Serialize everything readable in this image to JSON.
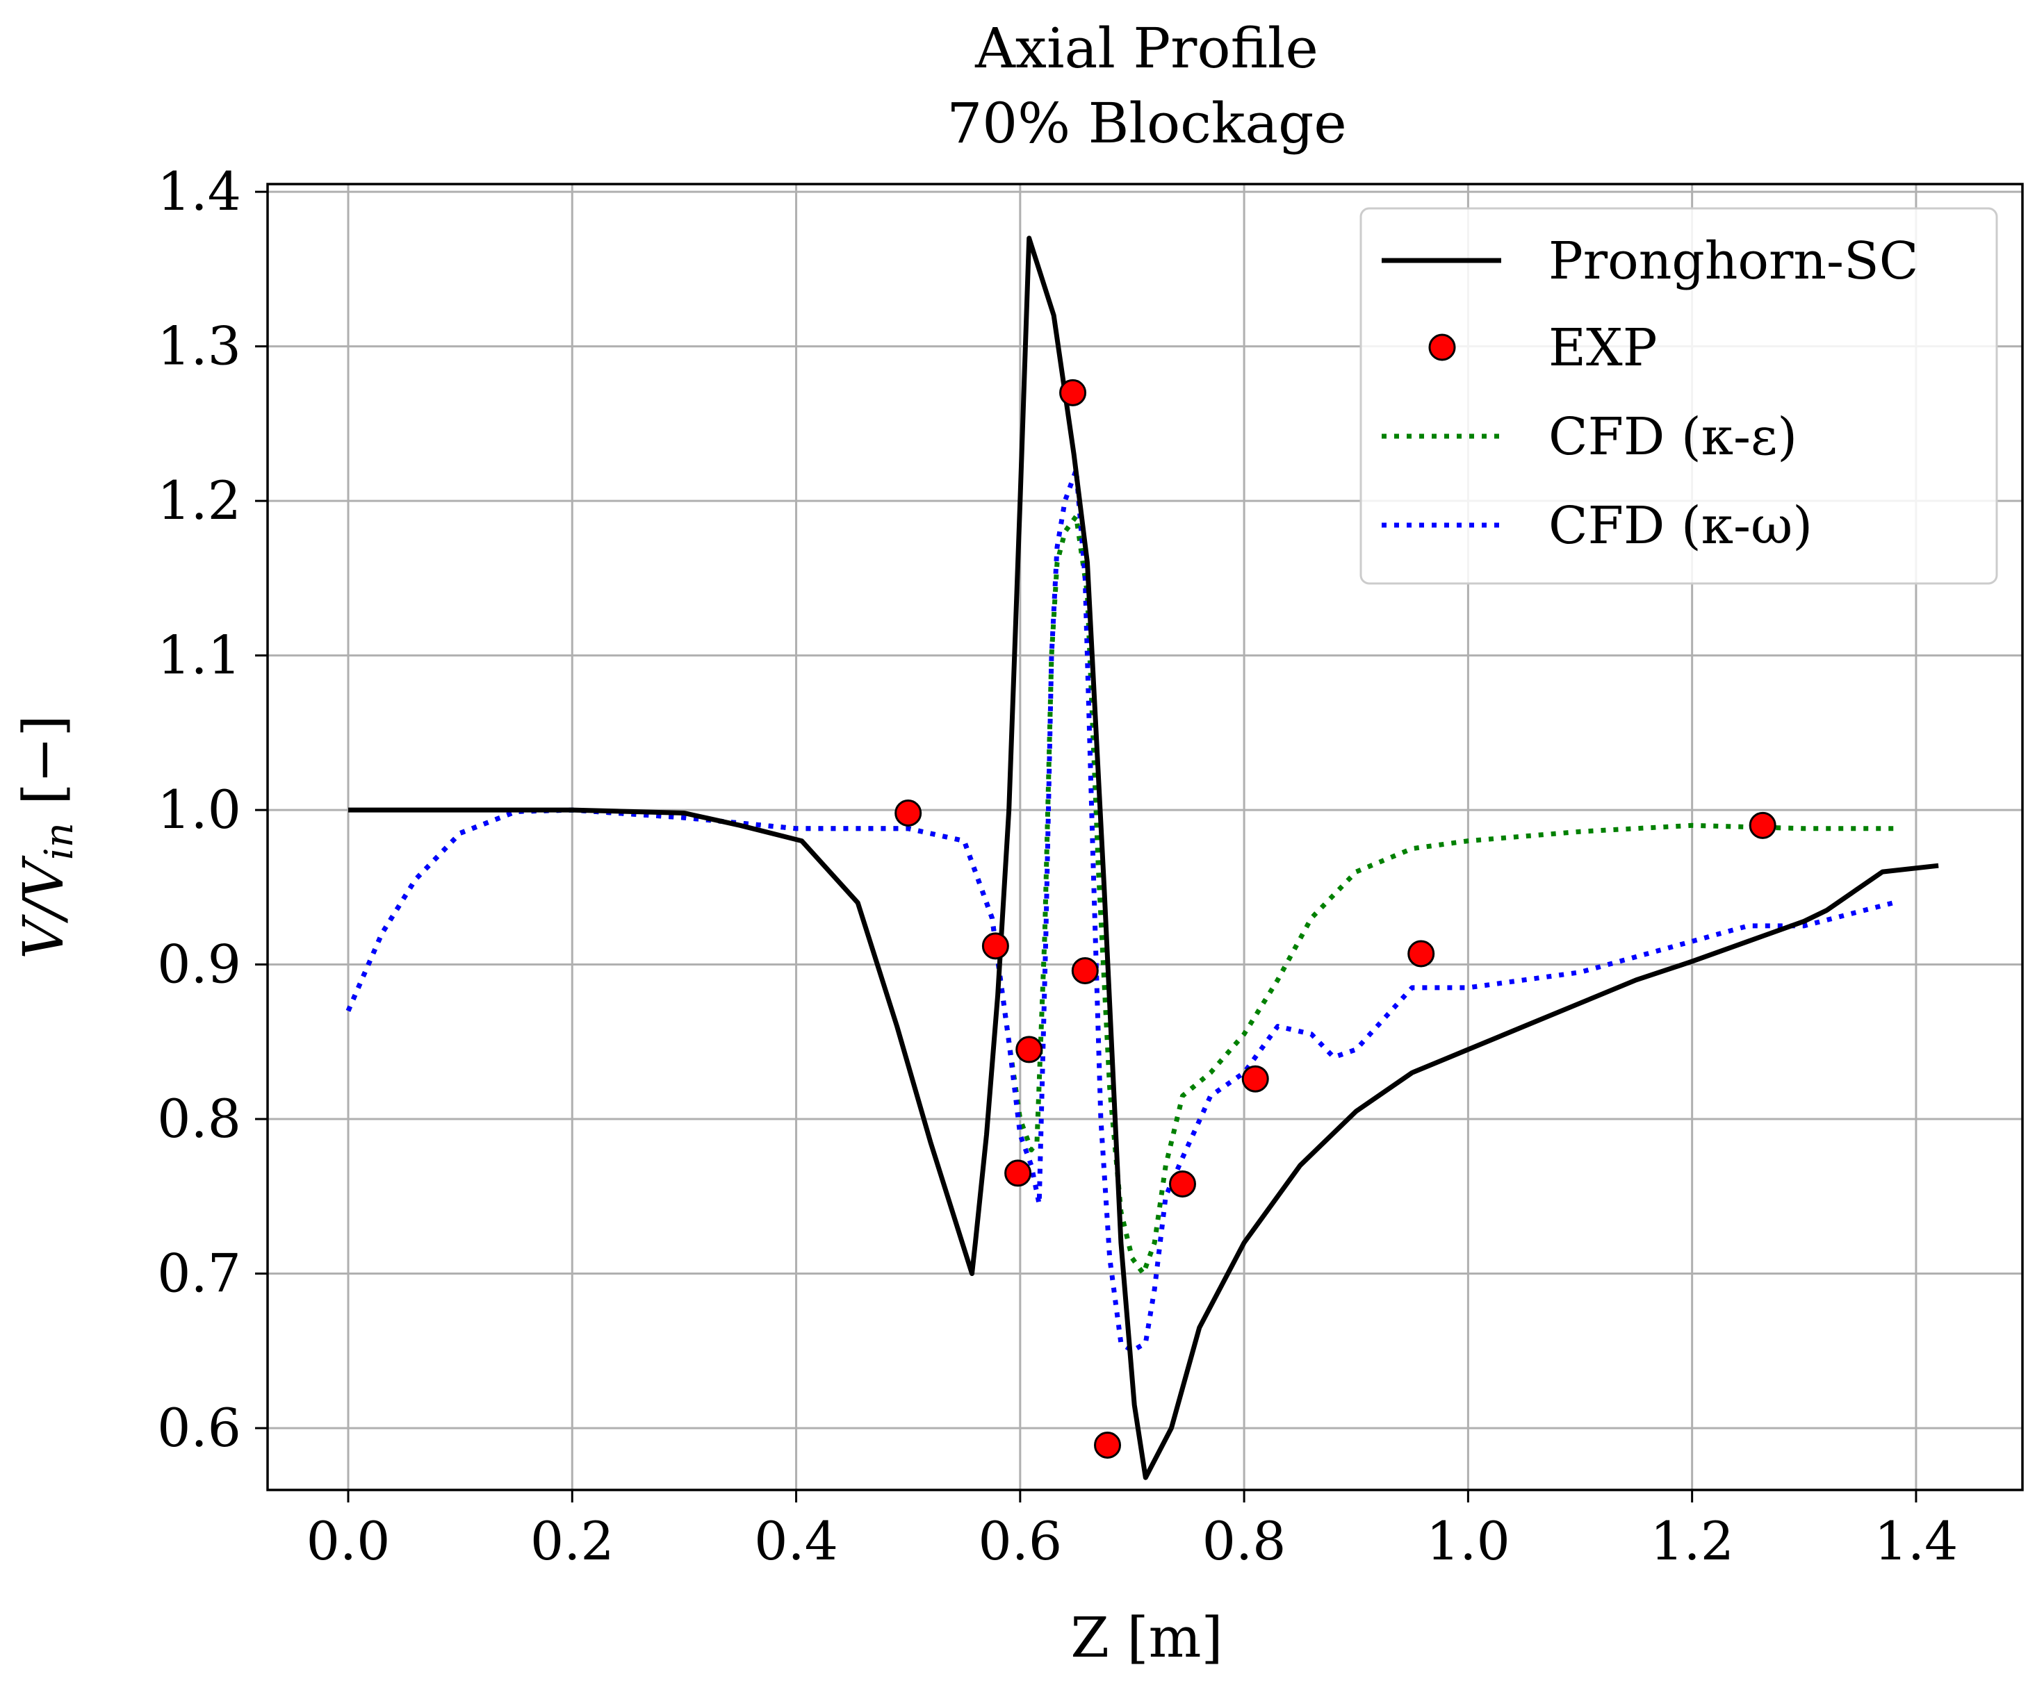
{
  "chart_data": {
    "type": "line",
    "title": [
      "Axial Profile",
      "70% Blockage"
    ],
    "xlabel": "Z [m]",
    "ylabel": "V/V_in [−]",
    "xlim": [
      -0.072,
      1.495
    ],
    "ylim": [
      0.56,
      1.405
    ],
    "xticks": [
      0.0,
      0.2,
      0.4,
      0.6,
      0.8,
      1.0,
      1.2,
      1.4
    ],
    "yticks": [
      0.6,
      0.7,
      0.8,
      0.9,
      1.0,
      1.1,
      1.2,
      1.3,
      1.4
    ],
    "xtick_labels": [
      "0.0",
      "0.2",
      "0.4",
      "0.6",
      "0.8",
      "1.0",
      "1.2",
      "1.4"
    ],
    "ytick_labels": [
      "0.6",
      "0.7",
      "0.8",
      "0.9",
      "1.0",
      "1.1",
      "1.2",
      "1.3",
      "1.4"
    ],
    "grid": true,
    "legend_position": "top-right",
    "series": [
      {
        "name": "Pronghorn-SC",
        "style": "solid",
        "color": "#000000",
        "x": [
          0.0,
          0.1,
          0.2,
          0.3,
          0.35,
          0.405,
          0.455,
          0.49,
          0.52,
          0.557,
          0.56,
          0.57,
          0.58,
          0.59,
          0.6,
          0.608,
          0.63,
          0.648,
          0.66,
          0.675,
          0.69,
          0.702,
          0.712,
          0.735,
          0.76,
          0.8,
          0.85,
          0.9,
          0.95,
          1.0,
          1.05,
          1.1,
          1.15,
          1.2,
          1.25,
          1.3,
          1.32,
          1.37,
          1.42
        ],
        "y": [
          1.0,
          1.0,
          1.0,
          0.998,
          0.99,
          0.98,
          0.94,
          0.86,
          0.785,
          0.7,
          0.72,
          0.79,
          0.88,
          1.0,
          1.2,
          1.37,
          1.32,
          1.23,
          1.16,
          0.95,
          0.72,
          0.615,
          0.568,
          0.6,
          0.665,
          0.72,
          0.77,
          0.805,
          0.83,
          0.845,
          0.86,
          0.875,
          0.89,
          0.902,
          0.915,
          0.928,
          0.935,
          0.96,
          0.964
        ]
      },
      {
        "name": "EXP",
        "style": "marker",
        "color": "#ff0000",
        "x": [
          0.5,
          0.578,
          0.598,
          0.608,
          0.647,
          0.658,
          0.678,
          0.745,
          0.81,
          0.958,
          1.263
        ],
        "y": [
          0.998,
          0.912,
          0.765,
          0.845,
          1.27,
          0.896,
          0.589,
          0.758,
          0.826,
          0.907,
          0.99
        ]
      },
      {
        "name": "CFD (κ-ε)",
        "style": "dotted",
        "color": "#008000",
        "x": [
          0.0,
          0.03,
          0.06,
          0.1,
          0.15,
          0.2,
          0.3,
          0.4,
          0.5,
          0.55,
          0.575,
          0.59,
          0.6,
          0.61,
          0.615,
          0.622,
          0.628,
          0.633,
          0.64,
          0.65,
          0.66,
          0.67,
          0.68,
          0.69,
          0.7,
          0.71,
          0.72,
          0.73,
          0.745,
          0.77,
          0.8,
          0.83,
          0.86,
          0.9,
          0.95,
          1.0,
          1.1,
          1.2,
          1.3,
          1.38
        ],
        "y": [
          0.87,
          0.92,
          0.955,
          0.985,
          0.999,
          1.0,
          0.995,
          0.988,
          0.988,
          0.98,
          0.93,
          0.85,
          0.8,
          0.78,
          0.785,
          0.92,
          1.1,
          1.16,
          1.18,
          1.19,
          1.14,
          0.96,
          0.82,
          0.74,
          0.71,
          0.7,
          0.72,
          0.77,
          0.815,
          0.83,
          0.855,
          0.89,
          0.93,
          0.96,
          0.975,
          0.98,
          0.986,
          0.99,
          0.988,
          0.988
        ]
      },
      {
        "name": "CFD (κ-ω)",
        "style": "dotted",
        "color": "#0000ff",
        "x": [
          0.0,
          0.03,
          0.06,
          0.1,
          0.15,
          0.2,
          0.3,
          0.4,
          0.5,
          0.55,
          0.575,
          0.59,
          0.6,
          0.61,
          0.617,
          0.623,
          0.628,
          0.633,
          0.64,
          0.65,
          0.658,
          0.665,
          0.672,
          0.68,
          0.69,
          0.7,
          0.712,
          0.72,
          0.73,
          0.745,
          0.77,
          0.8,
          0.83,
          0.86,
          0.88,
          0.9,
          0.95,
          1.0,
          1.1,
          1.2,
          1.25,
          1.3,
          1.38
        ],
        "y": [
          0.87,
          0.92,
          0.955,
          0.985,
          0.999,
          1.0,
          0.995,
          0.988,
          0.988,
          0.98,
          0.93,
          0.85,
          0.79,
          0.77,
          0.745,
          0.92,
          1.1,
          1.17,
          1.2,
          1.22,
          1.15,
          0.97,
          0.8,
          0.71,
          0.655,
          0.65,
          0.655,
          0.69,
          0.75,
          0.775,
          0.815,
          0.83,
          0.86,
          0.855,
          0.84,
          0.845,
          0.885,
          0.885,
          0.895,
          0.915,
          0.925,
          0.925,
          0.94
        ]
      }
    ]
  }
}
